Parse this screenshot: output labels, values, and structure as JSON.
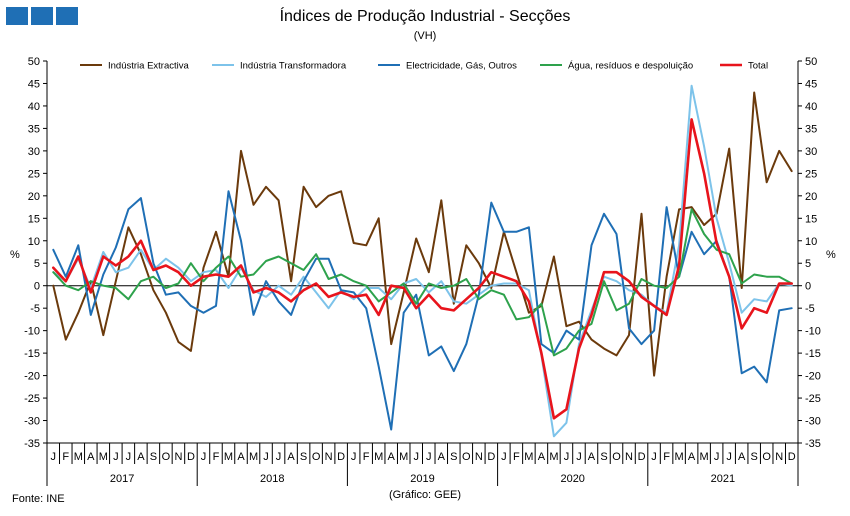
{
  "header": {
    "title": "Índices de Produção Industrial - Secções",
    "subtitle": "(VH)"
  },
  "footer": {
    "source": "Fonte: INE",
    "credit": "(Gráfico: GEE)"
  },
  "colors": {
    "logo": "#1f6fb5"
  },
  "chart_data": {
    "type": "line",
    "title": "Índices de Produção Industrial - Secções",
    "subtitle": "(VH)",
    "ylabel_left": "%",
    "ylabel_right": "%",
    "ylim": [
      -35,
      50
    ],
    "yticks": [
      50,
      45,
      40,
      35,
      30,
      25,
      20,
      15,
      10,
      5,
      0,
      -5,
      -10,
      -15,
      -20,
      -25,
      -30,
      -35
    ],
    "month_labels": [
      "J",
      "F",
      "M",
      "A",
      "M",
      "J",
      "J",
      "A",
      "S",
      "O",
      "N",
      "D"
    ],
    "years": [
      "2017",
      "2018",
      "2019",
      "2020",
      "2021"
    ],
    "grid": false,
    "legend_position": "top",
    "series": [
      {
        "name": "Indústria Extractiva",
        "color": "#6b3a0c",
        "values": [
          0,
          -12,
          -6,
          1,
          -11,
          1,
          13,
          7,
          -1,
          -6,
          -12.5,
          -14.5,
          4,
          12,
          2,
          30,
          18,
          22,
          19,
          1,
          22,
          17.5,
          20,
          21,
          9.5,
          9,
          15,
          -13,
          -1.5,
          10.5,
          3,
          19,
          -4,
          9,
          5,
          -0.5,
          12,
          3,
          -6,
          -4.5,
          6.5,
          -9,
          -8,
          -12,
          -14,
          -15.5,
          -11,
          16,
          -20,
          2,
          17,
          17.5,
          13.5,
          16,
          30.5,
          -0.5,
          43,
          23,
          30,
          25.5
        ]
      },
      {
        "name": "Indústria Transformadora",
        "color": "#7dc3ea",
        "values": [
          3,
          1,
          6,
          -0.5,
          7.5,
          3,
          4,
          8,
          3.5,
          6,
          4,
          1,
          3,
          3.5,
          -0.5,
          4,
          -1,
          -2.5,
          0,
          -2,
          2,
          -1.5,
          -5,
          -1,
          -3,
          -0.5,
          -0.5,
          -3,
          0.5,
          1.5,
          -1.5,
          1,
          -3.5,
          -4,
          -2,
          0,
          0.5,
          0.5,
          -1,
          -15.5,
          -33.5,
          -30.5,
          -13,
          -5.5,
          2,
          1,
          -1,
          -2,
          -4.5,
          -6,
          9,
          44.5,
          31,
          15,
          5,
          -6,
          -3,
          -3.5,
          0.5,
          0
        ]
      },
      {
        "name": "Electricidade, Gás, Outros",
        "color": "#1f6fb5",
        "values": [
          8,
          2,
          9,
          -6.5,
          2.5,
          8.5,
          17,
          19.5,
          5,
          -2,
          -1.5,
          -4.5,
          -6,
          -4.5,
          21,
          10,
          -6.5,
          1,
          -3.5,
          -6.5,
          1,
          6,
          6,
          -1,
          -1.5,
          -5,
          -18,
          -32,
          -6,
          -2,
          -15.5,
          -13.5,
          -19,
          -13,
          -2,
          18.5,
          12,
          12,
          13,
          -13,
          -15,
          -10,
          -12,
          9,
          16,
          11.5,
          -9.5,
          -13,
          -10,
          17.5,
          2,
          12,
          7,
          10,
          2,
          -19.5,
          -18,
          -21.5,
          -5.5,
          -5
        ]
      },
      {
        "name": "Água, resíduos e despoluição",
        "color": "#2ea24c",
        "values": [
          3,
          0,
          -1,
          1,
          0,
          -0.5,
          -3,
          1,
          2,
          -0.5,
          0.5,
          5,
          1,
          4,
          6.5,
          2,
          2.5,
          5.5,
          6.5,
          5,
          3.5,
          7,
          1.5,
          2.5,
          1,
          0,
          -3.5,
          -1.5,
          0.5,
          -4,
          0.5,
          -0.5,
          0,
          1.5,
          -3,
          -1,
          -2,
          -7.5,
          -7,
          -4,
          -15.5,
          -14,
          -10,
          -8.5,
          1,
          -5.5,
          -4,
          1.5,
          0,
          -0.5,
          2,
          17,
          11.5,
          8,
          7,
          0.5,
          2.5,
          2,
          2,
          0.5
        ]
      },
      {
        "name": "Total",
        "color": "#e8141c",
        "values": [
          4,
          1,
          6.5,
          -1.5,
          6.5,
          4.5,
          6.5,
          10,
          3.5,
          4.5,
          3,
          0,
          2,
          2.5,
          2,
          4.5,
          -1.5,
          -0.5,
          -1.5,
          -3.5,
          -1,
          0.5,
          -2.5,
          -1.5,
          -2.5,
          -2,
          -6.5,
          0,
          -0.5,
          -5,
          -2,
          -5,
          -5.5,
          -3,
          -0.5,
          3,
          2,
          1,
          -3.5,
          -15,
          -29.5,
          -27.5,
          -14,
          -6.5,
          3,
          3,
          1,
          -2.5,
          -4.5,
          -6.5,
          4.5,
          37,
          25,
          9.5,
          2,
          -9.5,
          -5,
          -6,
          0.5,
          0.5
        ]
      }
    ]
  }
}
